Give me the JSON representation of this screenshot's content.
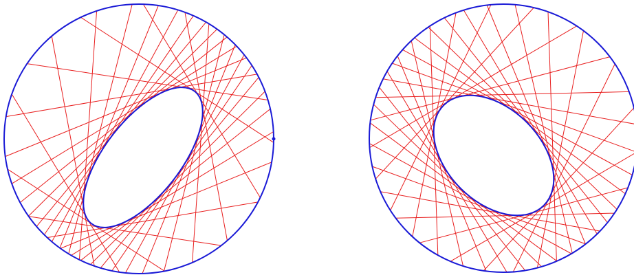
{
  "colors": {
    "circle": "#1a1ad6",
    "ellipse": "#1a1ad6",
    "chords": "#e81e1e",
    "background": "#ffffff"
  },
  "panels": [
    {
      "name": "left-panel",
      "ellipse_rotation_deg": -52,
      "chord_count": 30,
      "has_marked_point": true
    },
    {
      "name": "right-panel",
      "ellipse_rotation_deg": 45,
      "chord_count": 32,
      "has_marked_point": false
    }
  ]
}
